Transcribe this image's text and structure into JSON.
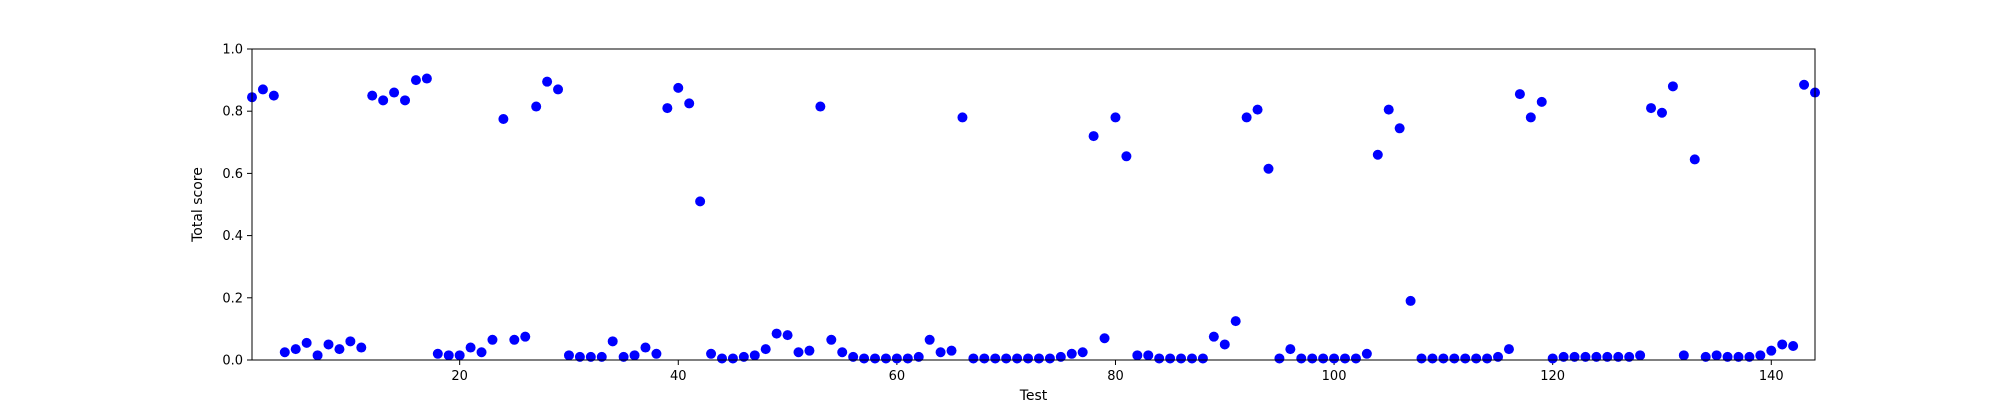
{
  "chart_data": {
    "type": "scatter",
    "xlabel": "Test",
    "ylabel": "Total score",
    "xlim": [
      1,
      144
    ],
    "ylim": [
      0,
      1.0
    ],
    "xticks": [
      20,
      40,
      60,
      80,
      100,
      120,
      140
    ],
    "xtick_labels": [
      "20",
      "40",
      "60",
      "80",
      "100",
      "120",
      "140"
    ],
    "yticks": [
      0,
      0.2,
      0.4,
      0.6,
      0.8,
      1.0
    ],
    "ytick_labels": [
      "0.0",
      "0.2",
      "0.4",
      "0.6",
      "0.8",
      "1.0"
    ],
    "grid": false,
    "marker_color": "#0000ff",
    "series": [
      {
        "x": [
          1,
          2,
          3,
          4,
          5,
          6,
          7,
          8,
          9,
          10,
          11,
          12,
          13,
          14,
          15,
          16,
          17,
          18,
          19,
          20,
          21,
          22,
          23,
          24,
          25,
          26,
          27,
          28,
          29,
          30,
          31,
          32,
          33,
          34,
          35,
          36,
          37,
          38,
          39,
          40,
          41,
          42,
          43,
          44,
          45,
          46,
          47,
          48,
          49,
          50,
          51,
          52,
          53,
          54,
          55,
          56,
          57,
          58,
          59,
          60,
          61,
          62,
          63,
          64,
          65,
          66,
          67,
          68,
          69,
          70,
          71,
          72,
          73,
          74,
          75,
          76,
          77,
          78,
          79,
          80,
          81,
          82,
          83,
          84,
          85,
          86,
          87,
          88,
          89,
          90,
          91,
          92,
          93,
          94,
          95,
          96,
          97,
          98,
          99,
          100,
          101,
          102,
          103,
          104,
          105,
          106,
          107,
          108,
          109,
          110,
          111,
          112,
          113,
          114,
          115,
          116,
          117,
          118,
          119,
          120,
          121,
          122,
          123,
          124,
          125,
          126,
          127,
          128,
          129,
          130,
          131,
          132,
          133,
          134,
          135,
          136,
          137,
          138,
          139,
          140,
          141,
          142,
          143,
          144
        ],
        "y": [
          0.845,
          0.87,
          0.85,
          0.025,
          0.035,
          0.055,
          0.015,
          0.05,
          0.035,
          0.06,
          0.04,
          0.85,
          0.835,
          0.86,
          0.835,
          0.9,
          0.905,
          0.02,
          0.015,
          0.015,
          0.04,
          0.025,
          0.065,
          0.775,
          0.065,
          0.075,
          0.815,
          0.895,
          0.87,
          0.015,
          0.01,
          0.01,
          0.01,
          0.06,
          0.01,
          0.015,
          0.04,
          0.02,
          0.81,
          0.875,
          0.825,
          0.51,
          0.02,
          0.005,
          0.005,
          0.01,
          0.015,
          0.035,
          0.085,
          0.08,
          0.025,
          0.03,
          0.815,
          0.065,
          0.025,
          0.01,
          0.005,
          0.005,
          0.005,
          0.005,
          0.005,
          0.01,
          0.065,
          0.025,
          0.03,
          0.78,
          0.005,
          0.005,
          0.005,
          0.005,
          0.005,
          0.005,
          0.005,
          0.005,
          0.01,
          0.02,
          0.025,
          0.72,
          0.07,
          0.78,
          0.655,
          0.015,
          0.015,
          0.005,
          0.005,
          0.005,
          0.005,
          0.005,
          0.075,
          0.05,
          0.125,
          0.78,
          0.805,
          0.615,
          0.005,
          0.035,
          0.005,
          0.005,
          0.005,
          0.005,
          0.005,
          0.005,
          0.02,
          0.66,
          0.805,
          0.745,
          0.19,
          0.005,
          0.005,
          0.005,
          0.005,
          0.005,
          0.005,
          0.005,
          0.01,
          0.035,
          0.855,
          0.78,
          0.83,
          0.005,
          0.01,
          0.01,
          0.01,
          0.01,
          0.01,
          0.01,
          0.01,
          0.015,
          0.81,
          0.795,
          0.88,
          0.015,
          0.645,
          0.01,
          0.015,
          0.01,
          0.01,
          0.01,
          0.015,
          0.03,
          0.05,
          0.045,
          0.885,
          0.86
        ]
      }
    ]
  }
}
